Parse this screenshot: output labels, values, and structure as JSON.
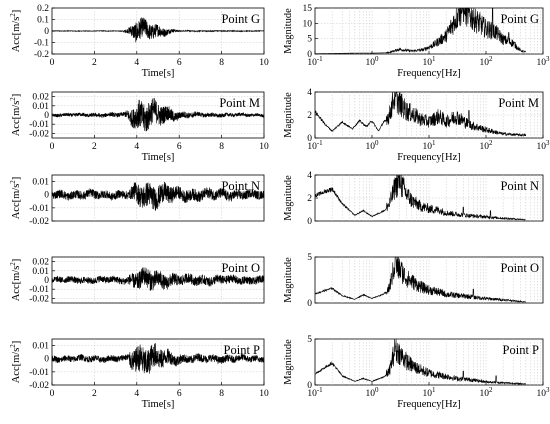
{
  "chart_data": [
    {
      "type": "line",
      "domain": "time",
      "title": "",
      "legend_label": "Point G",
      "xlabel": "Time[s]",
      "ylabel_main": "Acc[m/s",
      "ylabel_sup": "2",
      "ylabel_close": "]",
      "xlim": [
        0,
        10
      ],
      "ylim": [
        -0.2,
        0.2
      ],
      "xticks": [
        0,
        2,
        4,
        6,
        8,
        10
      ],
      "yticks": [
        {
          "v": 0.2,
          "t": "0.2"
        },
        {
          "v": 0.1,
          "t": "0.1"
        },
        {
          "v": 0,
          "t": "0"
        },
        {
          "v": -0.1,
          "t": "-0.1"
        },
        {
          "v": -0.2,
          "t": "-0.2"
        }
      ],
      "grid": true,
      "envelope": [
        {
          "t": 0,
          "a": 0.003
        },
        {
          "t": 3.3,
          "a": 0.003
        },
        {
          "t": 3.6,
          "a": 0.03
        },
        {
          "t": 4.0,
          "a": 0.12
        },
        {
          "t": 4.4,
          "a": 0.1
        },
        {
          "t": 5.0,
          "a": 0.07
        },
        {
          "t": 5.5,
          "a": 0.03
        },
        {
          "t": 6.0,
          "a": 0.006
        },
        {
          "t": 10,
          "a": 0.003
        }
      ]
    },
    {
      "type": "line",
      "domain": "frequency",
      "title": "",
      "legend_label": "Point G",
      "xlabel": "Frequency[Hz]",
      "ylabel": "Magnitude",
      "xscale": "log",
      "xlim": [
        0.1,
        1000
      ],
      "ylim": [
        0,
        15
      ],
      "xticks": [
        {
          "v": 0.1,
          "b": "10",
          "e": "-1"
        },
        {
          "v": 1,
          "b": "10",
          "e": "0"
        },
        {
          "v": 10,
          "b": "10",
          "e": "1"
        },
        {
          "v": 100,
          "b": "10",
          "e": "2"
        },
        {
          "v": 1000,
          "b": "10",
          "e": "3"
        }
      ],
      "yticks": [
        {
          "v": 0,
          "t": "0"
        },
        {
          "v": 5,
          "t": "5"
        },
        {
          "v": 10,
          "t": "10"
        },
        {
          "v": 15,
          "t": "15"
        }
      ],
      "grid": true,
      "spectrum": [
        [
          0.1,
          0.1
        ],
        [
          0.5,
          0.3
        ],
        [
          1,
          0.3
        ],
        [
          2,
          0.4
        ],
        [
          3,
          1.3
        ],
        [
          5,
          0.8
        ],
        [
          8,
          1.2
        ],
        [
          12,
          2.5
        ],
        [
          20,
          5
        ],
        [
          30,
          10
        ],
        [
          40,
          13
        ],
        [
          50,
          11
        ],
        [
          70,
          9
        ],
        [
          100,
          7
        ],
        [
          150,
          6
        ],
        [
          200,
          4
        ],
        [
          300,
          3
        ],
        [
          400,
          1
        ],
        [
          500,
          0.5
        ]
      ],
      "peaks": [
        [
          33,
          14.5
        ],
        [
          42,
          13
        ],
        [
          130,
          15.5
        ],
        [
          250,
          7
        ]
      ]
    },
    {
      "type": "line",
      "domain": "time",
      "title": "",
      "legend_label": "Point M",
      "xlabel": "Time[s]",
      "ylabel_main": "Acc[m/s",
      "ylabel_sup": "2",
      "ylabel_close": "]",
      "xlim": [
        0,
        10
      ],
      "ylim": [
        -0.025,
        0.025
      ],
      "xticks": [
        0,
        2,
        4,
        6,
        8,
        10
      ],
      "yticks": [
        {
          "v": 0.02,
          "t": "0.02"
        },
        {
          "v": 0.01,
          "t": "0.01"
        },
        {
          "v": 0,
          "t": "0"
        },
        {
          "v": -0.01,
          "t": "-0.01"
        },
        {
          "v": -0.02,
          "t": "-0.02"
        }
      ],
      "grid": true,
      "envelope": [
        {
          "t": 0,
          "a": 0.002
        },
        {
          "t": 3.4,
          "a": 0.003
        },
        {
          "t": 3.7,
          "a": 0.01
        },
        {
          "t": 4.1,
          "a": 0.02
        },
        {
          "t": 4.6,
          "a": 0.019
        },
        {
          "t": 5.3,
          "a": 0.012
        },
        {
          "t": 6.0,
          "a": 0.005
        },
        {
          "t": 7.0,
          "a": 0.003
        },
        {
          "t": 10,
          "a": 0.002
        }
      ]
    },
    {
      "type": "line",
      "domain": "frequency",
      "title": "",
      "legend_label": "Point M",
      "xlabel": "Frequency[Hz]",
      "ylabel": "Magnitude",
      "xscale": "log",
      "xlim": [
        0.1,
        1000
      ],
      "ylim": [
        0,
        4
      ],
      "xticks": [
        {
          "v": 0.1,
          "b": "10",
          "e": "-1"
        },
        {
          "v": 1,
          "b": "10",
          "e": "0"
        },
        {
          "v": 10,
          "b": "10",
          "e": "1"
        },
        {
          "v": 100,
          "b": "10",
          "e": "2"
        },
        {
          "v": 1000,
          "b": "10",
          "e": "3"
        }
      ],
      "yticks": [
        {
          "v": 0,
          "t": "0"
        },
        {
          "v": 2,
          "t": "2"
        },
        {
          "v": 4,
          "t": "4"
        }
      ],
      "grid": true,
      "spectrum": [
        [
          0.1,
          2.3
        ],
        [
          0.15,
          1.2
        ],
        [
          0.2,
          0.6
        ],
        [
          0.3,
          1.4
        ],
        [
          0.45,
          0.8
        ],
        [
          0.6,
          1.5
        ],
        [
          0.8,
          1.0
        ],
        [
          1,
          1.5
        ],
        [
          1.3,
          0.6
        ],
        [
          1.6,
          1.4
        ],
        [
          2,
          1.6
        ],
        [
          2.5,
          3.2
        ],
        [
          3,
          2.6
        ],
        [
          4,
          2.0
        ],
        [
          5,
          1.8
        ],
        [
          7,
          1.4
        ],
        [
          10,
          1.2
        ],
        [
          15,
          1.6
        ],
        [
          20,
          1.2
        ],
        [
          30,
          1.6
        ],
        [
          50,
          1.0
        ],
        [
          100,
          0.6
        ],
        [
          200,
          0.3
        ],
        [
          500,
          0.2
        ]
      ],
      "peaks": [
        [
          2.6,
          3.6
        ],
        [
          50,
          2.4
        ]
      ]
    },
    {
      "type": "line",
      "domain": "time",
      "title": "",
      "legend_label": "Point N",
      "xlabel": "",
      "ylabel_main": "Acc[m/s",
      "ylabel_sup": "2",
      "ylabel_close": "]",
      "xlim": [
        0,
        10
      ],
      "ylim": [
        -0.02,
        0.015
      ],
      "xticks": [],
      "yticks": [
        {
          "v": 0.01,
          "t": "0.01"
        },
        {
          "v": 0,
          "t": "0"
        },
        {
          "v": -0.01,
          "t": "-0.01"
        },
        {
          "v": -0.02,
          "t": "-0.02"
        }
      ],
      "grid": true,
      "envelope": [
        {
          "t": 0,
          "a": 0.004
        },
        {
          "t": 3.6,
          "a": 0.004
        },
        {
          "t": 4.0,
          "a": 0.01
        },
        {
          "t": 4.5,
          "a": 0.012
        },
        {
          "t": 5.2,
          "a": 0.01
        },
        {
          "t": 6.0,
          "a": 0.006
        },
        {
          "t": 10,
          "a": 0.004
        }
      ]
    },
    {
      "type": "line",
      "domain": "frequency",
      "title": "",
      "legend_label": "Point N",
      "xlabel": "",
      "ylabel": "Magnitude",
      "xscale": "log",
      "xlim": [
        0.1,
        1000
      ],
      "ylim": [
        0,
        4
      ],
      "xticks": [],
      "yticks": [
        {
          "v": 0,
          "t": "0"
        },
        {
          "v": 2,
          "t": "2"
        },
        {
          "v": 4,
          "t": "4"
        }
      ],
      "grid": true,
      "spectrum": [
        [
          0.1,
          2.2
        ],
        [
          0.2,
          2.8
        ],
        [
          0.3,
          1.5
        ],
        [
          0.5,
          0.5
        ],
        [
          0.7,
          0.9
        ],
        [
          1,
          0.4
        ],
        [
          1.5,
          0.8
        ],
        [
          2,
          1.2
        ],
        [
          2.5,
          2.4
        ],
        [
          3,
          3.0
        ],
        [
          4,
          2.0
        ],
        [
          5,
          1.5
        ],
        [
          7,
          1.1
        ],
        [
          10,
          0.9
        ],
        [
          15,
          0.8
        ],
        [
          20,
          0.6
        ],
        [
          30,
          0.5
        ],
        [
          50,
          0.4
        ],
        [
          100,
          0.3
        ],
        [
          200,
          0.2
        ],
        [
          500,
          0.1
        ]
      ],
      "peaks": [
        [
          2.6,
          3.7
        ],
        [
          3.2,
          3.0
        ],
        [
          40,
          1.2
        ],
        [
          120,
          0.9
        ]
      ]
    },
    {
      "type": "line",
      "domain": "time",
      "title": "",
      "legend_label": "Point O",
      "xlabel": "",
      "ylabel_main": "Acc[m/s",
      "ylabel_sup": "2",
      "ylabel_close": "]",
      "xlim": [
        0,
        10
      ],
      "ylim": [
        -0.025,
        0.025
      ],
      "xticks": [],
      "yticks": [
        {
          "v": 0.02,
          "t": "0.02"
        },
        {
          "v": 0.01,
          "t": "0.01"
        },
        {
          "v": 0,
          "t": "0"
        },
        {
          "v": -0.01,
          "t": "-0.01"
        },
        {
          "v": -0.02,
          "t": "-0.02"
        }
      ],
      "grid": true,
      "envelope": [
        {
          "t": 0,
          "a": 0.004
        },
        {
          "t": 3.5,
          "a": 0.005
        },
        {
          "t": 4.0,
          "a": 0.012
        },
        {
          "t": 4.6,
          "a": 0.014
        },
        {
          "t": 5.3,
          "a": 0.01
        },
        {
          "t": 6.2,
          "a": 0.007
        },
        {
          "t": 10,
          "a": 0.005
        }
      ]
    },
    {
      "type": "line",
      "domain": "frequency",
      "title": "",
      "legend_label": "Point O",
      "xlabel": "",
      "ylabel": "Magnitude",
      "xscale": "log",
      "xlim": [
        0.1,
        1000
      ],
      "ylim": [
        0,
        5
      ],
      "xticks": [],
      "yticks": [
        {
          "v": 0,
          "t": "0"
        },
        {
          "v": 5,
          "t": "5"
        }
      ],
      "grid": true,
      "spectrum": [
        [
          0.1,
          1.0
        ],
        [
          0.2,
          1.6
        ],
        [
          0.3,
          0.8
        ],
        [
          0.5,
          0.4
        ],
        [
          0.7,
          0.9
        ],
        [
          1,
          0.5
        ],
        [
          1.5,
          0.9
        ],
        [
          2,
          1.3
        ],
        [
          2.5,
          3.5
        ],
        [
          3,
          3.2
        ],
        [
          4,
          2.3
        ],
        [
          5,
          2.0
        ],
        [
          7,
          1.5
        ],
        [
          10,
          1.2
        ],
        [
          15,
          1.0
        ],
        [
          20,
          0.8
        ],
        [
          30,
          0.7
        ],
        [
          50,
          0.6
        ],
        [
          100,
          0.4
        ],
        [
          200,
          0.3
        ],
        [
          500,
          0.1
        ]
      ],
      "peaks": [
        [
          2.6,
          5.2
        ],
        [
          3.3,
          4.0
        ],
        [
          60,
          1.5
        ]
      ]
    },
    {
      "type": "line",
      "domain": "time",
      "title": "",
      "legend_label": "Point P",
      "xlabel": "Time[s]",
      "ylabel_main": "Acc[m/s",
      "ylabel_sup": "2",
      "ylabel_close": "]",
      "xlim": [
        0,
        10
      ],
      "ylim": [
        -0.02,
        0.015
      ],
      "xticks": [
        0,
        2,
        4,
        6,
        8,
        10
      ],
      "yticks": [
        {
          "v": 0.01,
          "t": "0.01"
        },
        {
          "v": 0,
          "t": "0"
        },
        {
          "v": -0.01,
          "t": "-0.01"
        },
        {
          "v": -0.02,
          "t": "-0.02"
        }
      ],
      "grid": true,
      "envelope": [
        {
          "t": 0,
          "a": 0.003
        },
        {
          "t": 3.5,
          "a": 0.003
        },
        {
          "t": 3.8,
          "a": 0.01
        },
        {
          "t": 4.2,
          "a": 0.014
        },
        {
          "t": 4.8,
          "a": 0.012
        },
        {
          "t": 5.5,
          "a": 0.007
        },
        {
          "t": 6.2,
          "a": 0.004
        },
        {
          "t": 10,
          "a": 0.003
        }
      ]
    },
    {
      "type": "line",
      "domain": "frequency",
      "title": "",
      "legend_label": "Point P",
      "xlabel": "Frequency[Hz]",
      "ylabel": "Magnitude",
      "xscale": "log",
      "xlim": [
        0.1,
        1000
      ],
      "ylim": [
        0,
        5
      ],
      "xticks": [
        {
          "v": 0.1,
          "b": "10",
          "e": "-1"
        },
        {
          "v": 1,
          "b": "10",
          "e": "0"
        },
        {
          "v": 10,
          "b": "10",
          "e": "1"
        },
        {
          "v": 100,
          "b": "10",
          "e": "2"
        },
        {
          "v": 1000,
          "b": "10",
          "e": "3"
        }
      ],
      "yticks": [
        {
          "v": 0,
          "t": "0"
        },
        {
          "v": 5,
          "t": "5"
        }
      ],
      "grid": true,
      "spectrum": [
        [
          0.1,
          1.2
        ],
        [
          0.2,
          2.4
        ],
        [
          0.3,
          1.0
        ],
        [
          0.5,
          0.4
        ],
        [
          0.7,
          0.7
        ],
        [
          1,
          0.4
        ],
        [
          1.5,
          0.8
        ],
        [
          2,
          1.2
        ],
        [
          2.5,
          3.2
        ],
        [
          3,
          3.0
        ],
        [
          4,
          2.2
        ],
        [
          5,
          1.8
        ],
        [
          7,
          1.4
        ],
        [
          10,
          1.1
        ],
        [
          15,
          0.9
        ],
        [
          20,
          0.8
        ],
        [
          30,
          0.6
        ],
        [
          50,
          0.5
        ],
        [
          100,
          0.3
        ],
        [
          200,
          0.2
        ],
        [
          500,
          0.1
        ]
      ],
      "peaks": [
        [
          2.6,
          4.2
        ],
        [
          3.2,
          3.6
        ],
        [
          40,
          1.5
        ],
        [
          150,
          1.0
        ]
      ]
    }
  ]
}
